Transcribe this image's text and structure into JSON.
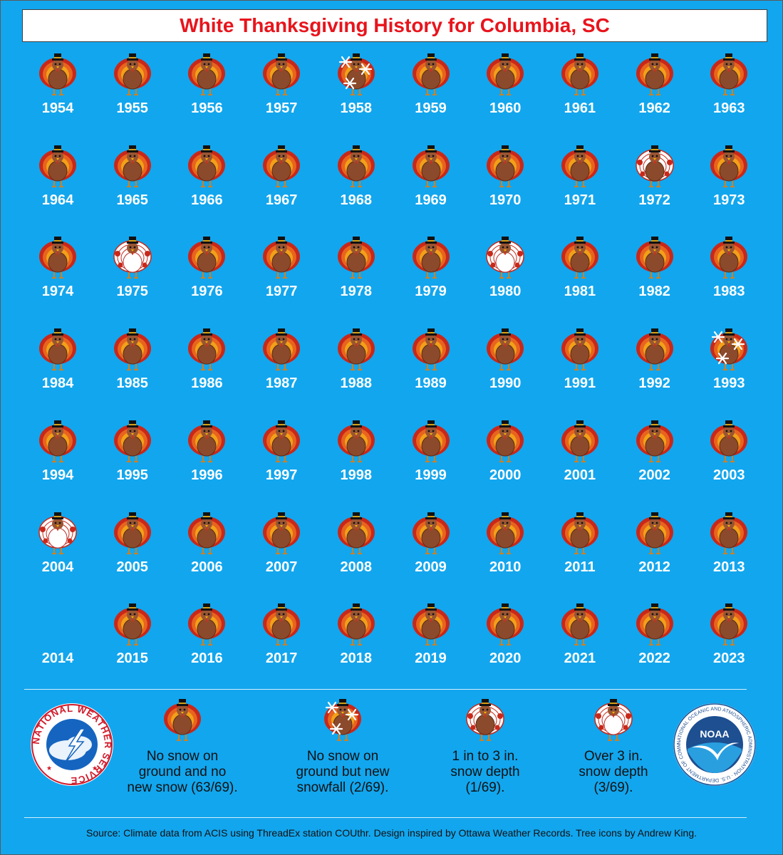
{
  "title": "White Thanksgiving History for Columbia, SC",
  "colors": {
    "background": "#12a6ee",
    "title": "#e8141c",
    "year_text": "#ffffff",
    "turkey_body": "#8b4a2b",
    "turkey_white": "#ffffff"
  },
  "years": [
    {
      "year": "1954",
      "cat": "none"
    },
    {
      "year": "1955",
      "cat": "none"
    },
    {
      "year": "1956",
      "cat": "none"
    },
    {
      "year": "1957",
      "cat": "none"
    },
    {
      "year": "1958",
      "cat": "newsnow"
    },
    {
      "year": "1959",
      "cat": "none"
    },
    {
      "year": "1960",
      "cat": "none"
    },
    {
      "year": "1961",
      "cat": "none"
    },
    {
      "year": "1962",
      "cat": "none"
    },
    {
      "year": "1963",
      "cat": "none"
    },
    {
      "year": "1964",
      "cat": "none"
    },
    {
      "year": "1965",
      "cat": "none"
    },
    {
      "year": "1966",
      "cat": "none"
    },
    {
      "year": "1967",
      "cat": "none"
    },
    {
      "year": "1968",
      "cat": "none"
    },
    {
      "year": "1969",
      "cat": "none"
    },
    {
      "year": "1970",
      "cat": "none"
    },
    {
      "year": "1971",
      "cat": "none"
    },
    {
      "year": "1972",
      "cat": "depth1to3"
    },
    {
      "year": "1973",
      "cat": "none"
    },
    {
      "year": "1974",
      "cat": "none"
    },
    {
      "year": "1975",
      "cat": "over3"
    },
    {
      "year": "1976",
      "cat": "none"
    },
    {
      "year": "1977",
      "cat": "none"
    },
    {
      "year": "1978",
      "cat": "none"
    },
    {
      "year": "1979",
      "cat": "none"
    },
    {
      "year": "1980",
      "cat": "over3"
    },
    {
      "year": "1981",
      "cat": "none"
    },
    {
      "year": "1982",
      "cat": "none"
    },
    {
      "year": "1983",
      "cat": "none"
    },
    {
      "year": "1984",
      "cat": "none"
    },
    {
      "year": "1985",
      "cat": "none"
    },
    {
      "year": "1986",
      "cat": "none"
    },
    {
      "year": "1987",
      "cat": "none"
    },
    {
      "year": "1988",
      "cat": "none"
    },
    {
      "year": "1989",
      "cat": "none"
    },
    {
      "year": "1990",
      "cat": "none"
    },
    {
      "year": "1991",
      "cat": "none"
    },
    {
      "year": "1992",
      "cat": "none"
    },
    {
      "year": "1993",
      "cat": "newsnow"
    },
    {
      "year": "1994",
      "cat": "none"
    },
    {
      "year": "1995",
      "cat": "none"
    },
    {
      "year": "1996",
      "cat": "none"
    },
    {
      "year": "1997",
      "cat": "none"
    },
    {
      "year": "1998",
      "cat": "none"
    },
    {
      "year": "1999",
      "cat": "none"
    },
    {
      "year": "2000",
      "cat": "none"
    },
    {
      "year": "2001",
      "cat": "none"
    },
    {
      "year": "2002",
      "cat": "none"
    },
    {
      "year": "2003",
      "cat": "none"
    },
    {
      "year": "2004",
      "cat": "over3"
    },
    {
      "year": "2005",
      "cat": "none"
    },
    {
      "year": "2006",
      "cat": "none"
    },
    {
      "year": "2007",
      "cat": "none"
    },
    {
      "year": "2008",
      "cat": "none"
    },
    {
      "year": "2009",
      "cat": "none"
    },
    {
      "year": "2010",
      "cat": "none"
    },
    {
      "year": "2011",
      "cat": "none"
    },
    {
      "year": "2012",
      "cat": "none"
    },
    {
      "year": "2013",
      "cat": "none"
    },
    {
      "year": "2014",
      "cat": "blank"
    },
    {
      "year": "2015",
      "cat": "none"
    },
    {
      "year": "2016",
      "cat": "none"
    },
    {
      "year": "2017",
      "cat": "none"
    },
    {
      "year": "2018",
      "cat": "none"
    },
    {
      "year": "2019",
      "cat": "none"
    },
    {
      "year": "2020",
      "cat": "none"
    },
    {
      "year": "2021",
      "cat": "none"
    },
    {
      "year": "2022",
      "cat": "none"
    },
    {
      "year": "2023",
      "cat": "none"
    }
  ],
  "legend": [
    {
      "cat": "none",
      "lines": [
        "No snow on",
        "ground and no",
        "new snow (63/69)."
      ]
    },
    {
      "cat": "newsnow",
      "lines": [
        "No snow on",
        "ground but new",
        "snowfall (2/69)."
      ]
    },
    {
      "cat": "depth1to3",
      "lines": [
        "1 in to 3 in.",
        "snow depth",
        "(1/69)."
      ]
    },
    {
      "cat": "over3",
      "lines": [
        "Over 3 in.",
        "snow depth",
        "(3/69)."
      ]
    }
  ],
  "logos": {
    "nws_text": "NATIONAL WEATHER SERVICE",
    "noaa_text": "NOAA",
    "noaa_ring_text": "NATIONAL OCEANIC AND ATMOSPHERIC ADMINISTRATION · U.S. DEPARTMENT OF COMMERCE"
  },
  "source": "Source: Climate data from ACIS using ThreadEx station COUthr. Design inspired by Ottawa Weather Records. Tree icons by Andrew King."
}
